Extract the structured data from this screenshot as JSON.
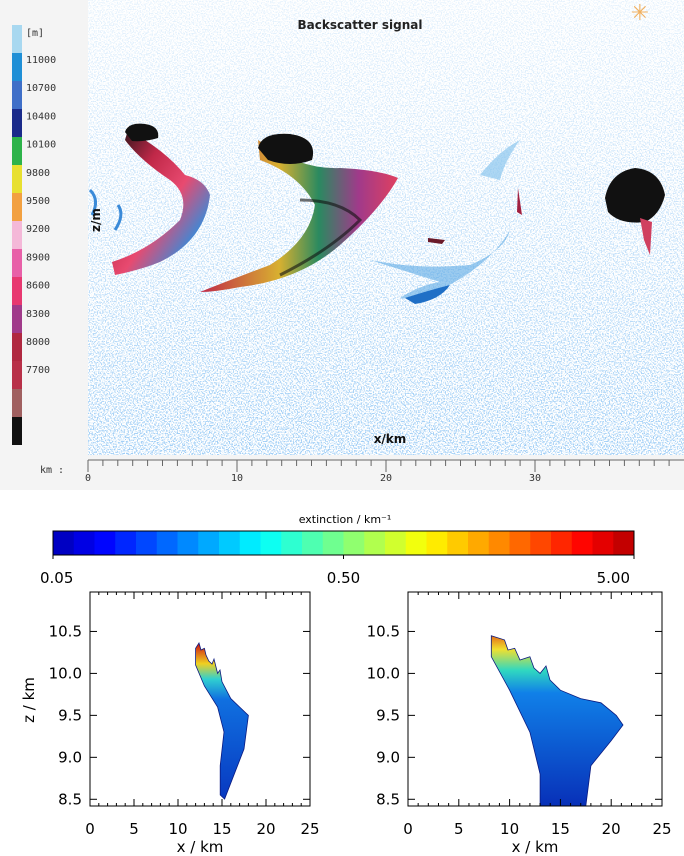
{
  "lidar": {
    "title": "Backscatter signal",
    "scale_unit": "[m]",
    "scale_labels": [
      11000,
      10700,
      10400,
      10100,
      9800,
      9500,
      9200,
      8900,
      8600,
      8300,
      8000,
      7700
    ],
    "scale_colors": [
      "#a8d8f0",
      "#1f8fd6",
      "#3f6fc8",
      "#1a2a8a",
      "#2db34a",
      "#e8e030",
      "#f2a040",
      "#f4b8d8",
      "#e860a8",
      "#e83870",
      "#a03a8a",
      "#b02840",
      "#b83048",
      "#a06060",
      "#111111"
    ],
    "y_label": "z/m",
    "x_label": "x/km",
    "x_unit": "km :",
    "xlim": [
      0,
      40
    ],
    "xticks": [
      0,
      10,
      20,
      30
    ]
  },
  "colorbar": {
    "title": "extinction / km⁻¹",
    "log": true,
    "lim": [
      0.05,
      5
    ],
    "ticks": [
      {
        "value": 0.05,
        "label": "0.05"
      },
      {
        "value": 0.5,
        "label": "0.50"
      },
      {
        "value": 5,
        "label": "5.00"
      }
    ]
  },
  "panels": [
    {
      "xlabel": "x / km",
      "ylabel": "z / km",
      "xlim": [
        0,
        25
      ],
      "ylim": [
        8.42,
        10.97
      ],
      "xticks": [
        0,
        5,
        10,
        15,
        20,
        25
      ],
      "yticks": [
        8.5,
        {
          "value": 9,
          "label": "9.0"
        },
        9.5,
        {
          "value": 10,
          "label": "10.0"
        },
        10.5
      ]
    },
    {
      "xlabel": "x / km",
      "xlim": [
        0,
        25
      ],
      "ylim": [
        8.42,
        10.97
      ],
      "xticks": [
        0,
        5,
        10,
        15,
        20,
        25
      ],
      "yticks": [
        8.5,
        {
          "value": 9,
          "label": "9.0"
        },
        9.5,
        {
          "value": 10,
          "label": "10.0"
        },
        10.5
      ]
    }
  ]
}
